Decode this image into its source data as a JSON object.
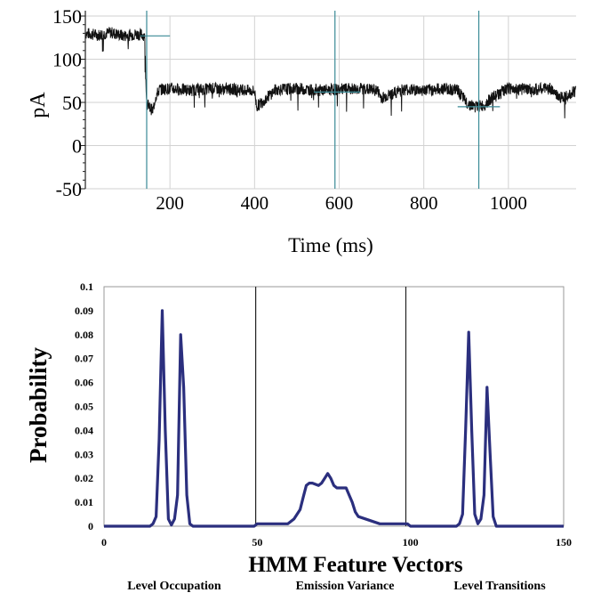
{
  "chart_data": [
    {
      "type": "line",
      "title": "",
      "xlabel": "Time (ms)",
      "ylabel": "pA",
      "xlim": [
        0,
        1160
      ],
      "ylim": [
        -50,
        150
      ],
      "x_ticks": [
        200,
        400,
        600,
        800,
        1000
      ],
      "y_ticks": [
        150,
        100,
        50,
        0,
        -50
      ],
      "grid": true,
      "series": [
        {
          "x": [
            0,
            30,
            60,
            90,
            120,
            140,
            145,
            150,
            160,
            165,
            175,
            200,
            250,
            300,
            350,
            400,
            405,
            450,
            500,
            550,
            600,
            650,
            690,
            700,
            750,
            800,
            850,
            880,
            900,
            920,
            940,
            960,
            1000,
            1050,
            1100,
            1120,
            1160
          ],
          "y": [
            130,
            128,
            131,
            127,
            129,
            128,
            50,
            45,
            40,
            55,
            65,
            66,
            64,
            66,
            65,
            63,
            45,
            65,
            66,
            64,
            65,
            66,
            64,
            55,
            65,
            64,
            66,
            64,
            50,
            45,
            46,
            55,
            66,
            65,
            66,
            55,
            64
          ]
        }
      ],
      "annotations": {
        "vertical_markers_x": [
          145,
          590,
          930
        ],
        "horizontal_markers": [
          {
            "x": [
              130,
              200
            ],
            "y": 127
          },
          {
            "x": [
              540,
              650
            ],
            "y": 62
          },
          {
            "x": [
              880,
              980
            ],
            "y": 45
          }
        ]
      }
    },
    {
      "type": "line",
      "title": "",
      "xlabel": "HMM Feature Vectors",
      "ylabel": "Probability",
      "xlim": [
        0,
        150
      ],
      "ylim": [
        0,
        0.1
      ],
      "x_ticks": [
        "0",
        "50",
        "100",
        "150"
      ],
      "y_ticks": [
        "0",
        "0.01",
        "0.02",
        "0.03",
        "0.04",
        "0.05",
        "0.06",
        "0.07",
        "0.08",
        "0.09",
        "0.1"
      ],
      "grid": false,
      "section_dividers_x": [
        49.5,
        98.5
      ],
      "section_labels": [
        "Level Occupation",
        "Emission Variance",
        "Level Transitions"
      ],
      "line_color": "#2b2f7e",
      "series": [
        {
          "x": [
            0,
            15,
            16,
            17,
            18,
            19,
            20,
            21,
            22,
            23,
            24,
            25,
            26,
            27,
            28,
            29,
            48,
            49,
            50,
            60,
            62,
            64,
            65,
            66,
            67,
            68,
            70,
            71,
            72,
            73,
            74,
            75,
            76,
            77,
            78,
            79,
            80,
            81,
            82,
            83,
            90,
            98,
            99,
            100,
            115,
            116,
            117,
            118,
            119,
            120,
            121,
            122,
            123,
            124,
            125,
            126,
            127,
            128,
            150
          ],
          "y": [
            0,
            0,
            0.001,
            0.004,
            0.036,
            0.09,
            0.04,
            0.003,
            0.0005,
            0.003,
            0.013,
            0.08,
            0.058,
            0.013,
            0.001,
            0,
            0,
            0,
            0.001,
            0.001,
            0.003,
            0.007,
            0.012,
            0.017,
            0.018,
            0.018,
            0.017,
            0.018,
            0.02,
            0.022,
            0.02,
            0.017,
            0.016,
            0.016,
            0.016,
            0.016,
            0.013,
            0.01,
            0.006,
            0.004,
            0.001,
            0.001,
            0.001,
            0,
            0,
            0.001,
            0.005,
            0.04,
            0.081,
            0.04,
            0.005,
            0.001,
            0.003,
            0.013,
            0.058,
            0.03,
            0.004,
            0,
            0
          ]
        }
      ]
    }
  ]
}
